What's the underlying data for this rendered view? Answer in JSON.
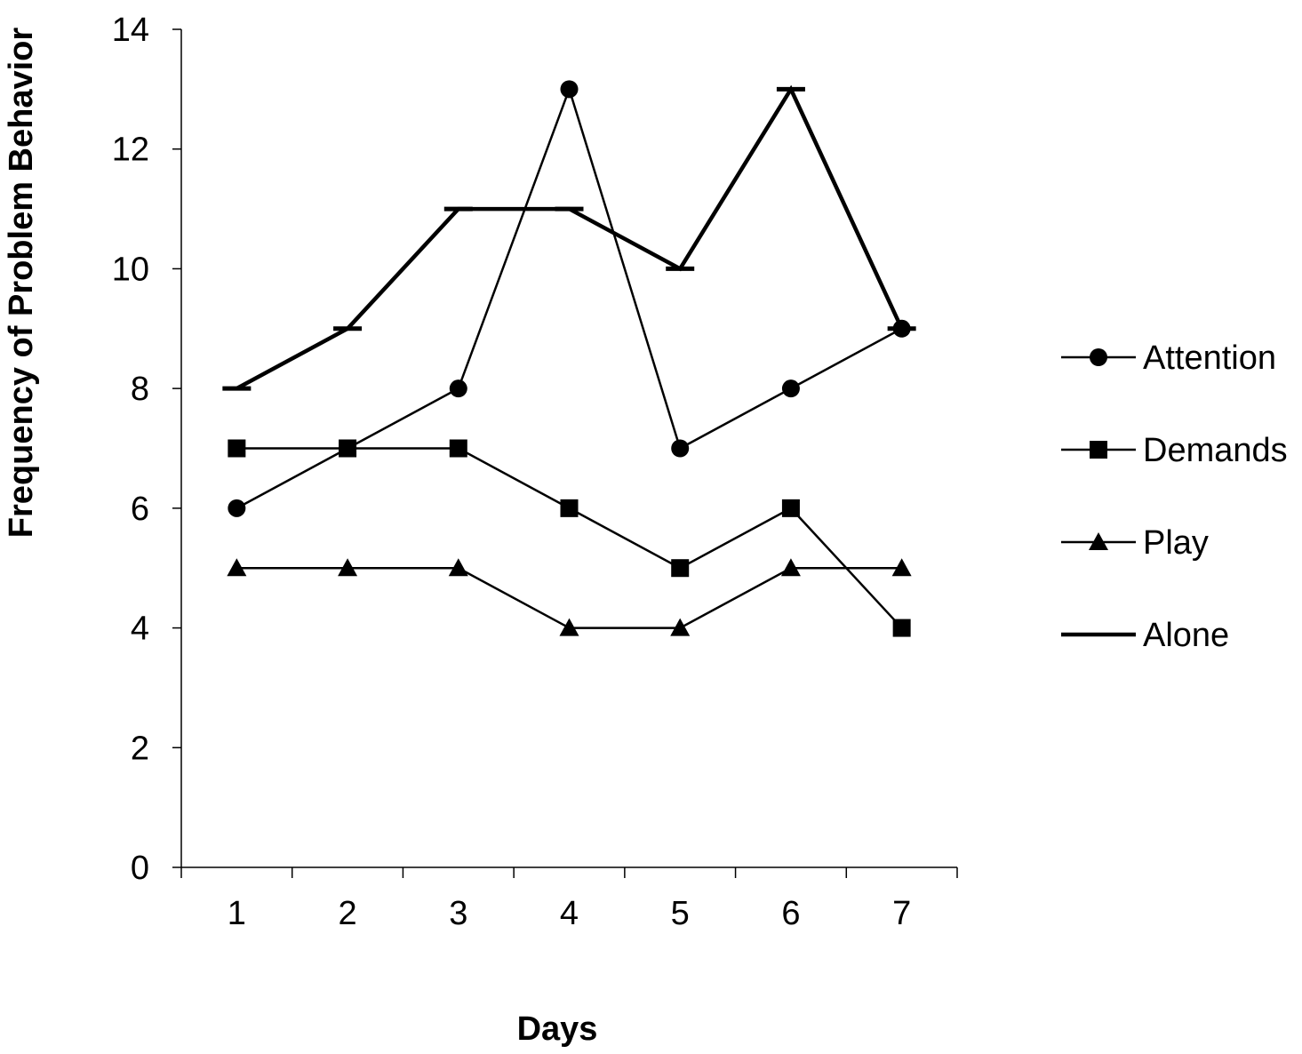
{
  "chart_data": {
    "type": "line",
    "title": "",
    "xlabel": "Days",
    "ylabel": "Frequency of Problem Behavior",
    "categories": [
      "1",
      "2",
      "3",
      "4",
      "5",
      "6",
      "7"
    ],
    "ylim": [
      0,
      14
    ],
    "yticks": [
      0,
      2,
      4,
      6,
      8,
      10,
      12,
      14
    ],
    "grid": false,
    "legend": "right",
    "series": [
      {
        "name": "Attention",
        "marker": "circle",
        "values": [
          6,
          7,
          8,
          13,
          7,
          8,
          9
        ]
      },
      {
        "name": "Demands",
        "marker": "square",
        "values": [
          7,
          7,
          7,
          6,
          5,
          6,
          4
        ]
      },
      {
        "name": "Play",
        "marker": "triangle",
        "values": [
          5,
          5,
          5,
          4,
          4,
          5,
          5
        ]
      },
      {
        "name": "Alone",
        "marker": "dash",
        "values": [
          8,
          9,
          11,
          11,
          10,
          13,
          9
        ]
      }
    ]
  }
}
